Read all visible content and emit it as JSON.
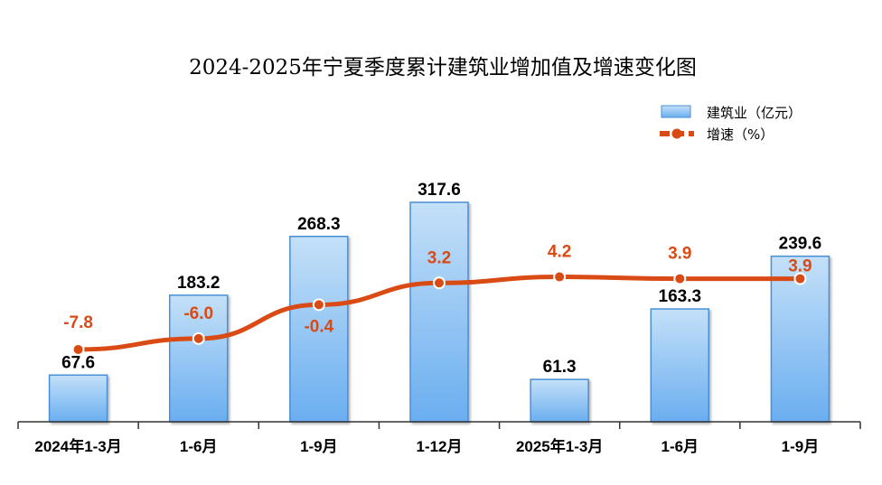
{
  "chart_data": {
    "type": "bar+line",
    "title": "2024-2025年宁夏季度累计建筑业增加值及增速变化图",
    "categories": [
      "2024年1-3月",
      "1-6月",
      "1-9月",
      "1-12月",
      "2025年1-3月",
      "1-6月",
      "1-9月"
    ],
    "series": [
      {
        "name": "建筑业（亿元）",
        "type": "bar",
        "values": [
          67.6,
          183.2,
          268.3,
          317.6,
          61.3,
          163.3,
          239.6
        ],
        "color": "#7db8ee"
      },
      {
        "name": "增速（%）",
        "type": "line",
        "values": [
          -7.8,
          -6.0,
          -0.4,
          3.2,
          4.2,
          3.9,
          3.9
        ],
        "color": "#d94a14"
      }
    ],
    "legend": "top-right",
    "grid": false
  }
}
